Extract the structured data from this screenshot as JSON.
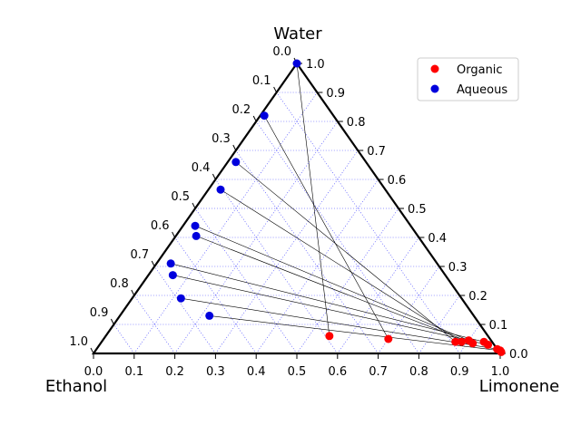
{
  "chart_data": {
    "type": "scatter",
    "subtype": "ternary",
    "title": "",
    "axes": {
      "top": "Water",
      "left": "Ethanol",
      "right": "Limonene"
    },
    "ticks": [
      "0.0",
      "0.1",
      "0.2",
      "0.3",
      "0.4",
      "0.5",
      "0.6",
      "0.7",
      "0.8",
      "0.9",
      "1.0"
    ],
    "grid": true,
    "legend_position": "top-right",
    "series": [
      {
        "name": "Organic",
        "color": "#ff0000",
        "points": [
          {
            "limonene": 0.55,
            "water": 0.06
          },
          {
            "limonene": 0.7,
            "water": 0.05
          },
          {
            "limonene": 0.87,
            "water": 0.04
          },
          {
            "limonene": 0.885,
            "water": 0.04
          },
          {
            "limonene": 0.9,
            "water": 0.045
          },
          {
            "limonene": 0.915,
            "water": 0.035
          },
          {
            "limonene": 0.94,
            "water": 0.04
          },
          {
            "limonene": 0.955,
            "water": 0.03
          },
          {
            "limonene": 0.985,
            "water": 0.015
          },
          {
            "limonene": 0.995,
            "water": 0.01
          },
          {
            "limonene": 1.0,
            "water": 0.005
          }
        ]
      },
      {
        "name": "Aqueous",
        "color": "#0000dd",
        "points": [
          {
            "limonene": 0.0,
            "water": 1.0
          },
          {
            "limonene": 0.01,
            "water": 0.82
          },
          {
            "limonene": 0.02,
            "water": 0.66
          },
          {
            "limonene": 0.03,
            "water": 0.565
          },
          {
            "limonene": 0.03,
            "water": 0.44
          },
          {
            "limonene": 0.05,
            "water": 0.405
          },
          {
            "limonene": 0.035,
            "water": 0.31
          },
          {
            "limonene": 0.06,
            "water": 0.27
          },
          {
            "limonene": 0.12,
            "water": 0.19
          },
          {
            "limonene": 0.22,
            "water": 0.13
          }
        ]
      }
    ],
    "tie_lines": [
      [
        0,
        0
      ],
      [
        1,
        1
      ],
      [
        2,
        2
      ],
      [
        3,
        3
      ],
      [
        4,
        4
      ],
      [
        5,
        5
      ],
      [
        6,
        6
      ],
      [
        7,
        7
      ],
      [
        8,
        8
      ],
      [
        9,
        9
      ]
    ]
  }
}
